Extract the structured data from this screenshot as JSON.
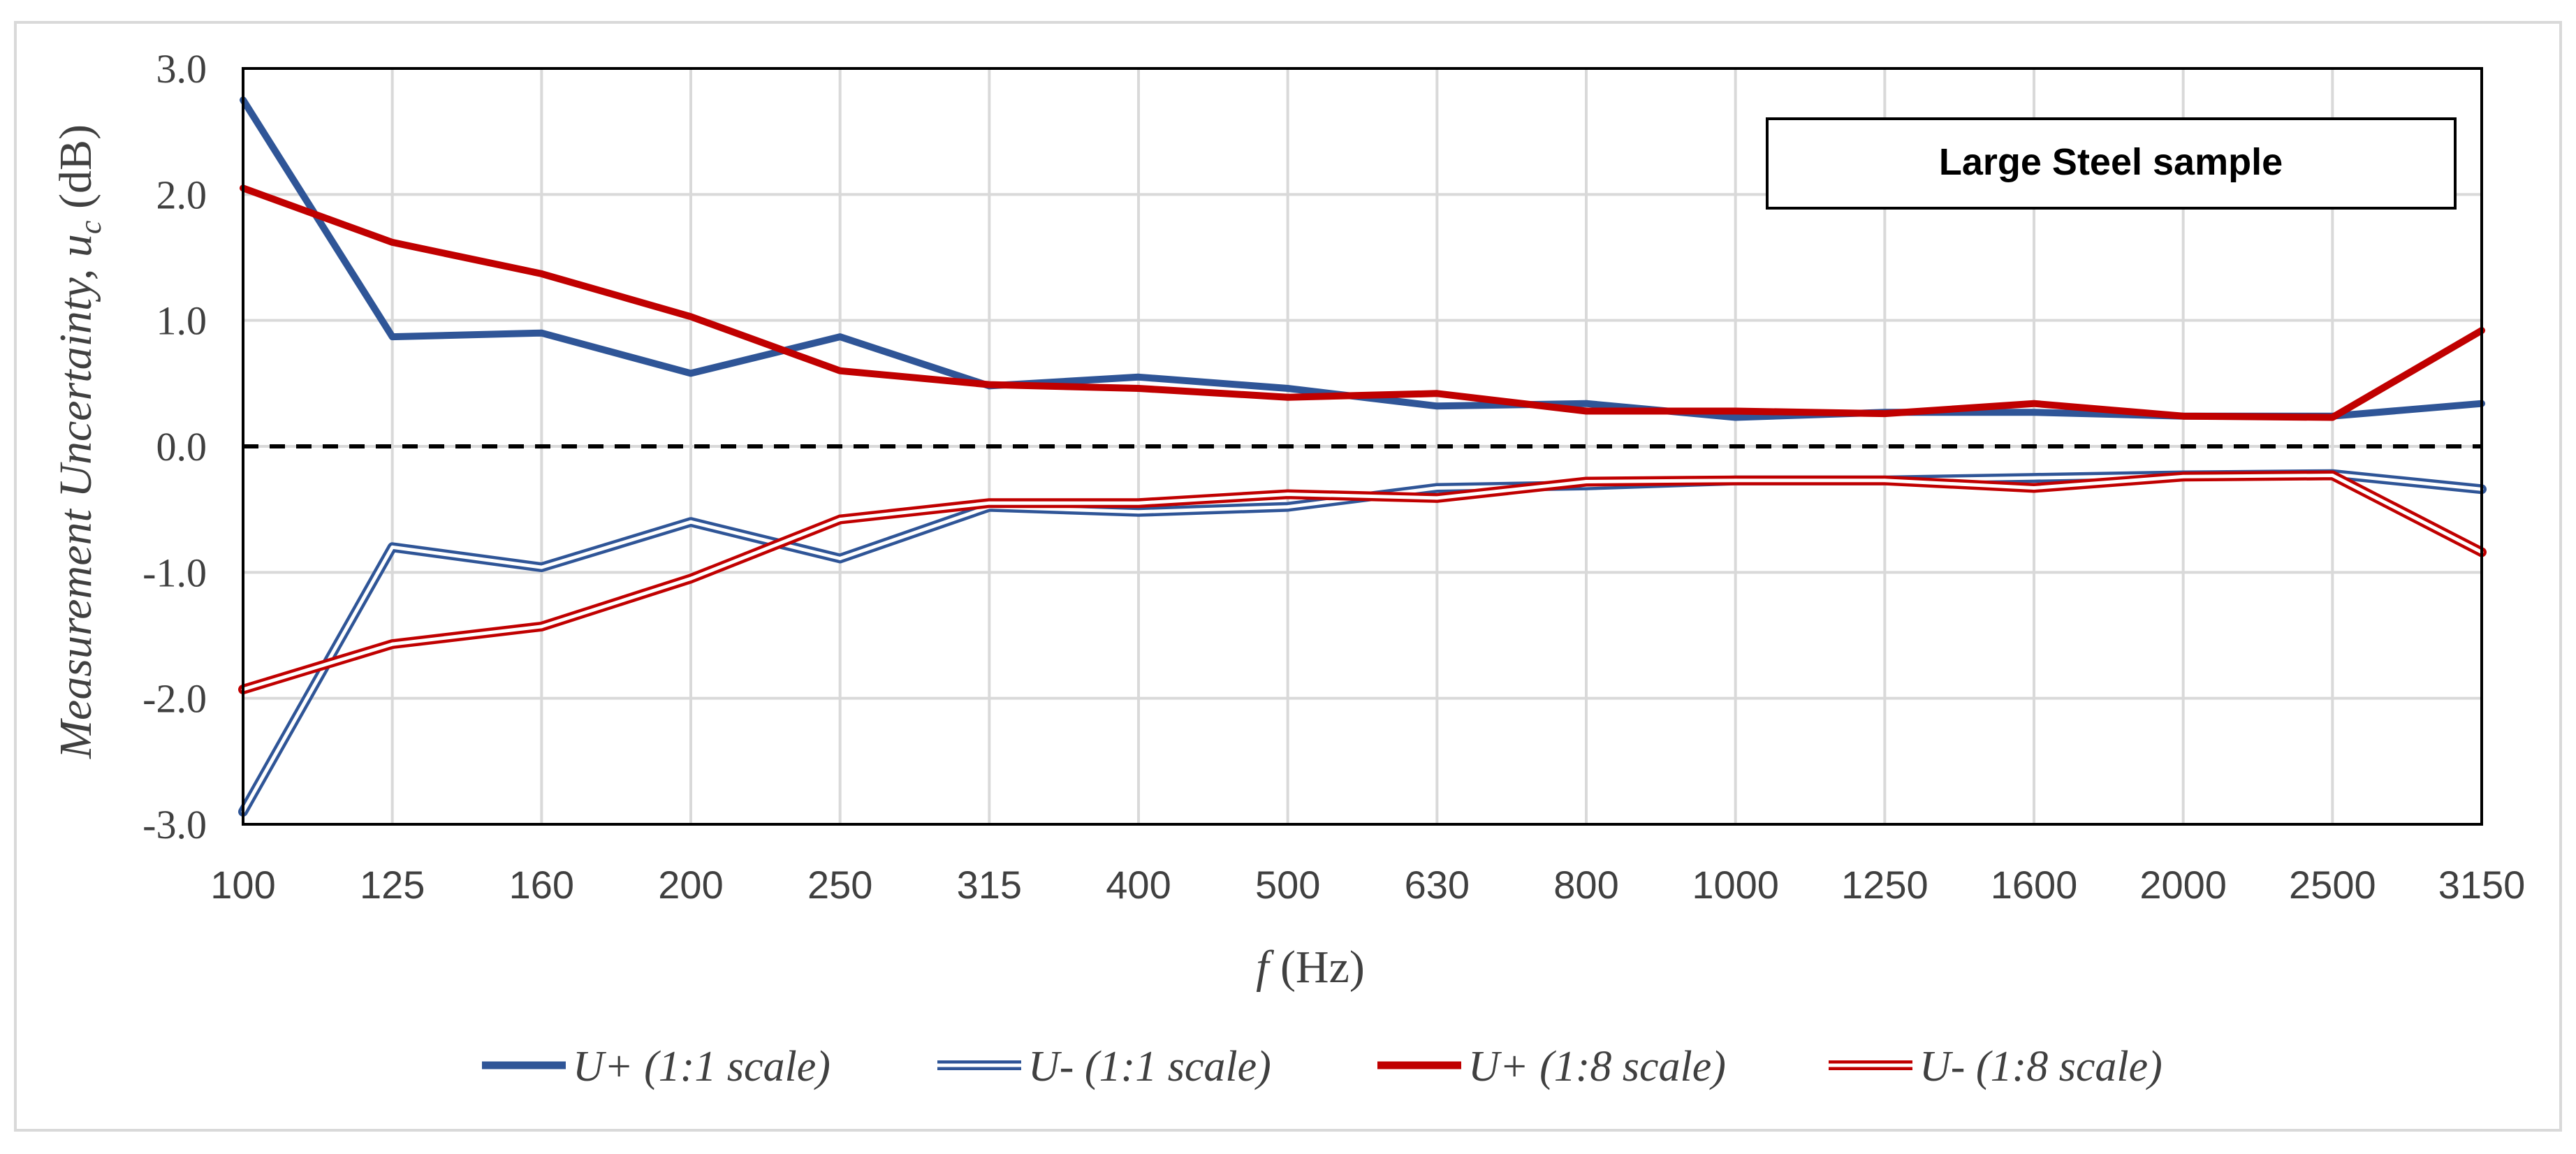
{
  "chart_data": {
    "type": "line",
    "title": "",
    "annotation": "Large Steel sample",
    "xlabel": "(Hz)",
    "xlabel_var": "f",
    "ylabel": "Measurement Uncertainty, ",
    "ylabel_var": "u",
    "ylabel_sub": "c",
    "ylabel_unit": " (dB)",
    "categories": [
      "100",
      "125",
      "160",
      "200",
      "250",
      "315",
      "400",
      "500",
      "630",
      "800",
      "1000",
      "1250",
      "1600",
      "2000",
      "2500",
      "3150"
    ],
    "ylim": [
      -3.0,
      3.0
    ],
    "yticks": [
      3.0,
      2.0,
      1.0,
      0.0,
      -1.0,
      -2.0,
      -3.0
    ],
    "ytick_labels": [
      "3.0",
      "2.0",
      "1.0",
      "0.0",
      "-1.0",
      "-2.0",
      "-3.0"
    ],
    "reference_line": 0.0,
    "grid": true,
    "legend_position": "bottom",
    "series": [
      {
        "name": "U+ (1:1 scale)",
        "color": "#2f5597",
        "style": "solid",
        "values": [
          2.75,
          0.87,
          0.9,
          0.58,
          0.87,
          0.48,
          0.55,
          0.46,
          0.32,
          0.34,
          0.23,
          0.27,
          0.27,
          0.24,
          0.24,
          0.34
        ]
      },
      {
        "name": "U- (1:1 scale)",
        "color": "#2f5597",
        "style": "double",
        "values": [
          -2.9,
          -0.8,
          -0.96,
          -0.6,
          -0.89,
          -0.48,
          -0.52,
          -0.48,
          -0.33,
          -0.31,
          -0.27,
          -0.27,
          -0.25,
          -0.23,
          -0.22,
          -0.34
        ]
      },
      {
        "name": "U+ (1:8 scale)",
        "color": "#c00000",
        "style": "solid",
        "values": [
          2.05,
          1.62,
          1.37,
          1.03,
          0.6,
          0.49,
          0.46,
          0.39,
          0.42,
          0.28,
          0.28,
          0.26,
          0.34,
          0.24,
          0.23,
          0.92
        ]
      },
      {
        "name": "U- (1:8 scale)",
        "color": "#c00000",
        "style": "double",
        "values": [
          -1.93,
          -1.57,
          -1.43,
          -1.05,
          -0.58,
          -0.45,
          -0.45,
          -0.38,
          -0.41,
          -0.28,
          -0.27,
          -0.27,
          -0.33,
          -0.24,
          -0.23,
          -0.84
        ]
      }
    ]
  }
}
